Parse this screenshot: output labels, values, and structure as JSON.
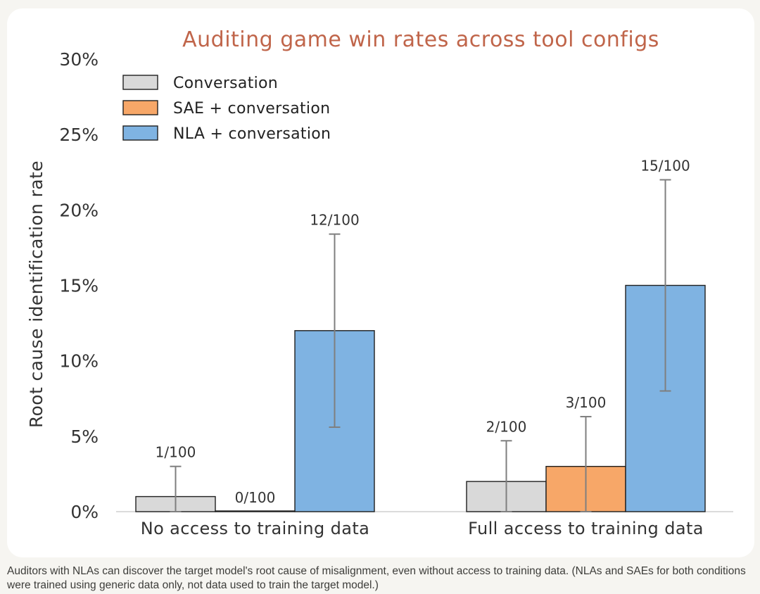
{
  "chart_data": {
    "type": "bar",
    "title": "Auditing game win rates across tool configs",
    "ylabel": "Root cause identification rate",
    "xlabel": "",
    "ylim": [
      0,
      30
    ],
    "yticks": [
      0,
      5,
      10,
      15,
      20,
      25,
      30
    ],
    "ytick_suffix": "%",
    "categories": [
      "No access to training data",
      "Full access to training data"
    ],
    "legend_position": "top-left",
    "grid": false,
    "series": [
      {
        "name": "Conversation",
        "color": "#d9d9d9",
        "values": [
          1,
          2
        ],
        "error_low": [
          0,
          0
        ],
        "error_high": [
          3,
          4.7
        ],
        "labels": [
          "1/100",
          "2/100"
        ]
      },
      {
        "name": "SAE + conversation",
        "color": "#f7a768",
        "values": [
          0,
          3
        ],
        "error_low": [
          0,
          0
        ],
        "error_high": [
          0,
          6.3
        ],
        "labels": [
          "0/100",
          "3/100"
        ]
      },
      {
        "name": "NLA + conversation",
        "color": "#7fb3e2",
        "values": [
          12,
          15
        ],
        "error_low": [
          5.6,
          8
        ],
        "error_high": [
          18.4,
          22
        ],
        "labels": [
          "12/100",
          "15/100"
        ]
      }
    ]
  },
  "caption": "Auditors with NLAs can discover the target model's root cause of misalignment, even without access to training data. (NLAs and SAEs for both conditions were trained using generic data only, not data used to train the target model.)"
}
